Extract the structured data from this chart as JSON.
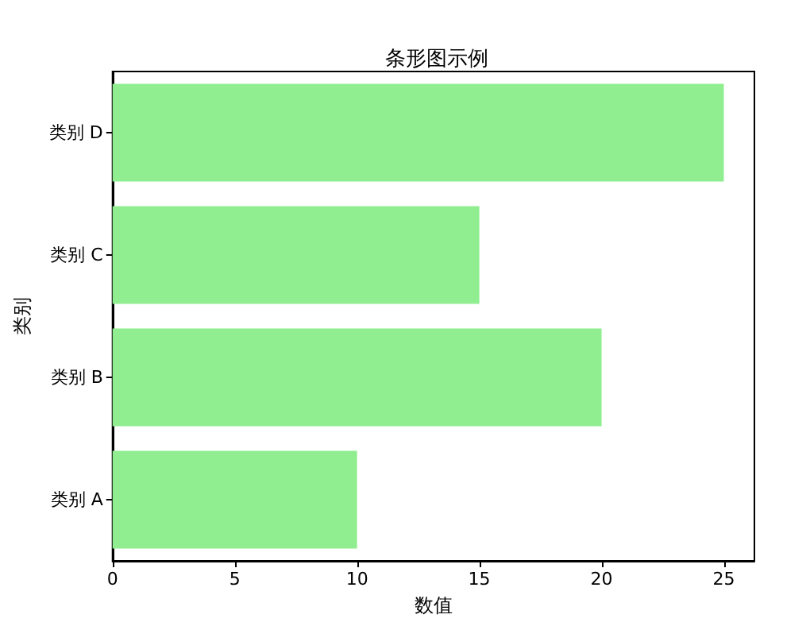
{
  "chart_data": {
    "type": "bar",
    "orientation": "horizontal",
    "title": "条形图示例",
    "xlabel": "数值",
    "ylabel": "类别",
    "categories": [
      "类别 D",
      "类别 C",
      "类别 B",
      "类别 A"
    ],
    "values": [
      25,
      15,
      20,
      10
    ],
    "color": "#90ee90",
    "xlim": [
      0,
      26.25
    ],
    "xticks": [
      0,
      5,
      10,
      15,
      20,
      25
    ],
    "grid": false
  }
}
